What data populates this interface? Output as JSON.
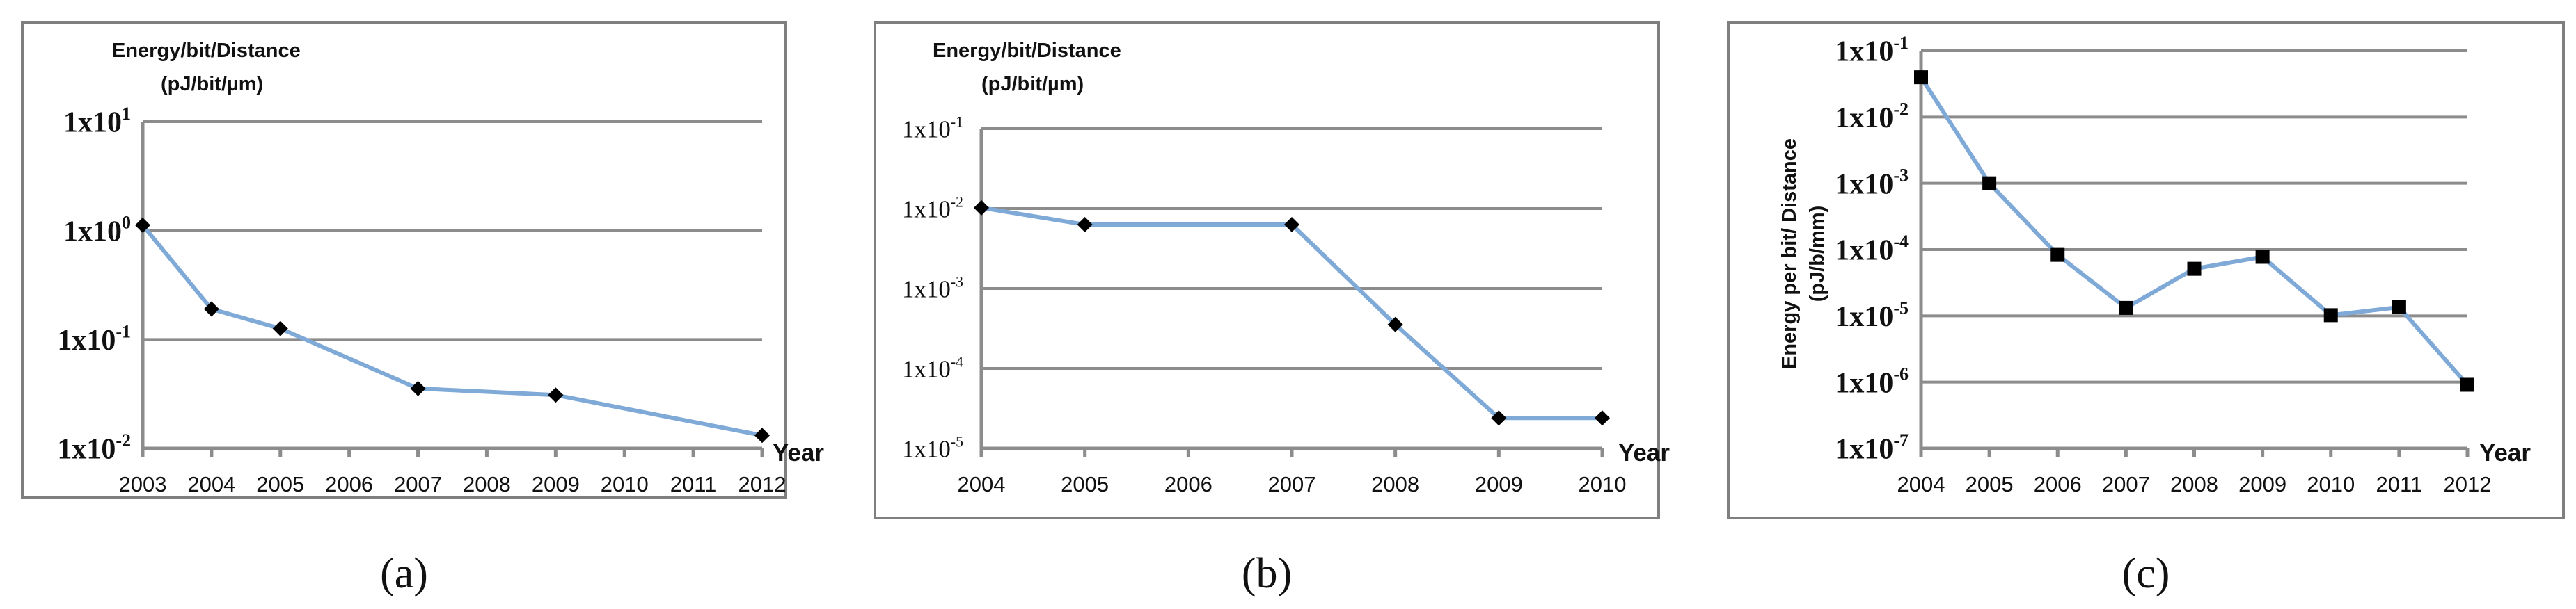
{
  "figure": {
    "chart_data": [
      {
        "id": "a",
        "type": "line",
        "caption": "(a)",
        "ylabel_lines": [
          "Energy/bit/Distance",
          "(pJ/bit/µm)"
        ],
        "xlabel": "Year",
        "yscale": "log",
        "ylim": [
          0.01,
          10
        ],
        "y_ticks": [
          {
            "exp": 1,
            "base": "1x10",
            "sup": "1"
          },
          {
            "exp": 0,
            "base": "1x10",
            "sup": "0"
          },
          {
            "exp": -1,
            "base": "1x10",
            "sup": "-1"
          },
          {
            "exp": -2,
            "base": "1x10",
            "sup": "-2"
          }
        ],
        "x_ticks": [
          "2003",
          "2004",
          "2005",
          "2006",
          "2007",
          "2008",
          "2009",
          "2010",
          "2011",
          "2012"
        ],
        "marker": "diamond",
        "x": [
          2003,
          2004,
          2005,
          2007,
          2009,
          2012
        ],
        "y_log10": [
          0.05,
          -0.72,
          -0.9,
          -1.45,
          -1.51,
          -1.88
        ]
      },
      {
        "id": "b",
        "type": "line",
        "caption": "(b)",
        "ylabel_lines": [
          "Energy/bit/Distance",
          "(pJ/bit/µm)"
        ],
        "xlabel": "Year",
        "yscale": "log",
        "ylim": [
          1e-05,
          0.1
        ],
        "y_ticks": [
          {
            "exp": -1,
            "base": "1x10",
            "sup": "-1"
          },
          {
            "exp": -2,
            "base": "1x10",
            "sup": "-2"
          },
          {
            "exp": -3,
            "base": "1x10",
            "sup": "-3"
          },
          {
            "exp": -4,
            "base": "1x10",
            "sup": "-4"
          },
          {
            "exp": -5,
            "base": "1x10",
            "sup": "-5"
          }
        ],
        "x_ticks": [
          "2004",
          "2005",
          "2006",
          "2007",
          "2008",
          "2009",
          "2010"
        ],
        "marker": "diamond",
        "x": [
          2004,
          2005,
          2007,
          2008,
          2009,
          2010
        ],
        "y_log10": [
          -1.99,
          -2.2,
          -2.2,
          -3.45,
          -4.62,
          -4.62
        ]
      },
      {
        "id": "c",
        "type": "line",
        "caption": "(c)",
        "ylabel_lines": [
          "Energy per bit/ Distance",
          "(pJ/b/mm)"
        ],
        "xlabel": "Year",
        "yscale": "log",
        "ylim": [
          1e-07,
          0.1
        ],
        "y_ticks": [
          {
            "exp": -1,
            "base": "1x10",
            "sup": "-1"
          },
          {
            "exp": -2,
            "base": "1x10",
            "sup": "-2"
          },
          {
            "exp": -3,
            "base": "1x10",
            "sup": "-3"
          },
          {
            "exp": -4,
            "base": "1x10",
            "sup": "-4"
          },
          {
            "exp": -5,
            "base": "1x10",
            "sup": "-5"
          },
          {
            "exp": -6,
            "base": "1x10",
            "sup": "-6"
          },
          {
            "exp": -7,
            "base": "1x10",
            "sup": "-7"
          }
        ],
        "x_ticks": [
          "2004",
          "2005",
          "2006",
          "2007",
          "2008",
          "2009",
          "2010",
          "2011",
          "2012"
        ],
        "marker": "square",
        "x": [
          2004,
          2005,
          2006,
          2007,
          2008,
          2009,
          2010,
          2011,
          2012
        ],
        "y_log10": [
          -1.4,
          -3.0,
          -4.08,
          -4.88,
          -4.29,
          -4.11,
          -4.99,
          -4.87,
          -6.04
        ]
      }
    ]
  }
}
